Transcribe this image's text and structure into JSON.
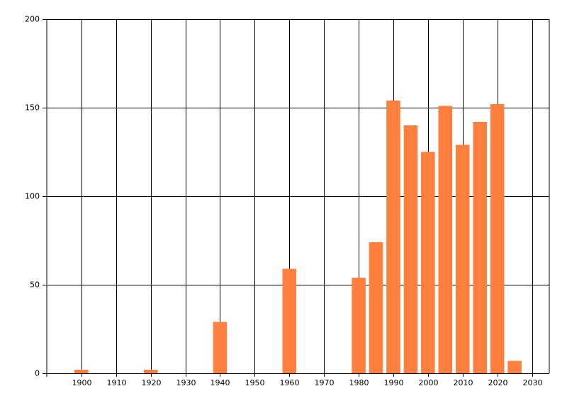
{
  "chart_data": {
    "type": "bar",
    "x": [
      1900,
      1920,
      1940,
      1960,
      1980,
      1985,
      1990,
      1995,
      2000,
      2005,
      2010,
      2015,
      2020,
      2025
    ],
    "values": [
      2,
      2,
      29,
      59,
      54,
      74,
      154,
      140,
      125,
      151,
      129,
      142,
      152,
      7
    ],
    "color": "#ff7f3f",
    "xlim": [
      1890,
      2035
    ],
    "xticks": [
      1900,
      1910,
      1920,
      1930,
      1940,
      1950,
      1960,
      1970,
      1980,
      1990,
      2000,
      2010,
      2020,
      2030
    ],
    "ylim": [
      0,
      200
    ],
    "yticks": [
      0,
      50,
      100,
      150,
      200
    ],
    "grid": true
  }
}
